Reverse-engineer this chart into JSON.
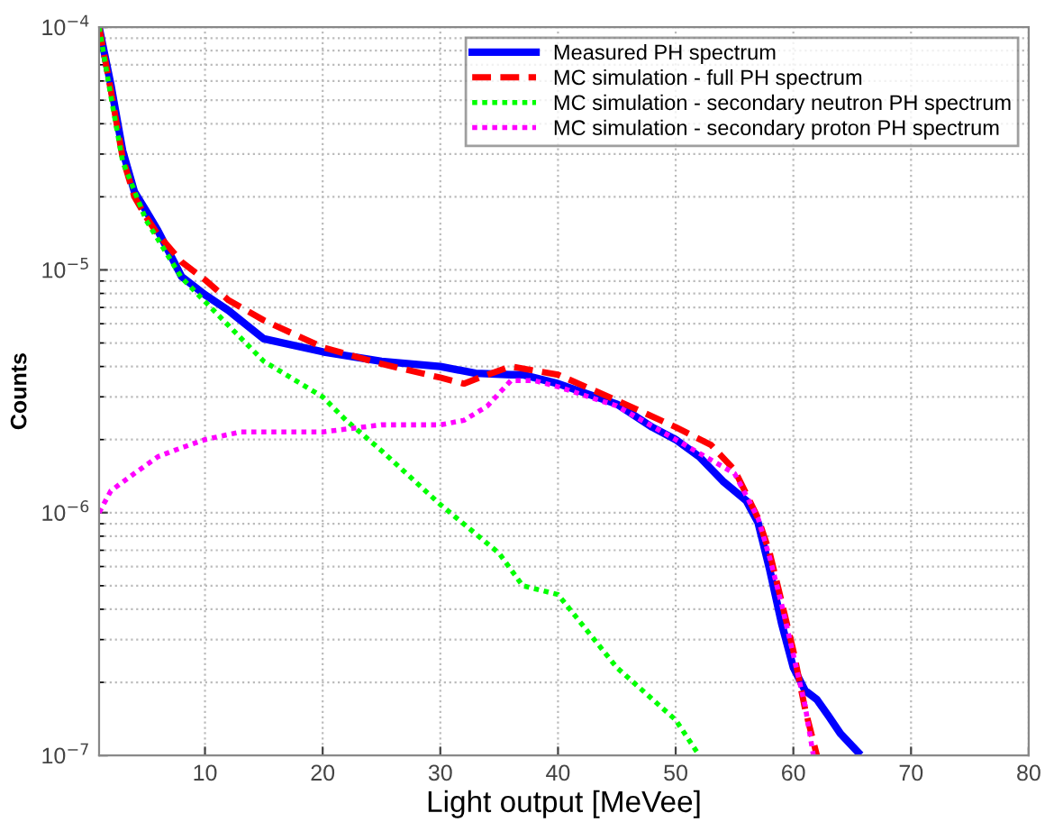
{
  "chart_data": {
    "type": "line",
    "xlabel": "Light output [MeVee]",
    "ylabel": "Counts",
    "log": "y",
    "grid": true,
    "legend": "top right",
    "xlim": [
      1,
      80
    ],
    "xticks": [
      10,
      20,
      30,
      40,
      50,
      60,
      70,
      80
    ],
    "ylim": [
      1e-07,
      0.0001
    ],
    "yticks": [
      {
        "value": 1e-07,
        "label": "10$^{−7}$"
      },
      {
        "value": 1e-06,
        "label": "10$^{−6}$"
      },
      {
        "value": 1e-05,
        "label": "10$^{−5}$"
      },
      {
        "value": 0.0001,
        "label": "10$^{−4}$"
      }
    ],
    "series": [
      {
        "name": "Measured PH spectrum",
        "color": "#0000ff",
        "line_style": "solid",
        "x": [
          1,
          2,
          3,
          4,
          5,
          6,
          7,
          8,
          10,
          12,
          15,
          20,
          25,
          30,
          33,
          36,
          37,
          40,
          45,
          48,
          50,
          52,
          54,
          56,
          57,
          58,
          59,
          60,
          61,
          62,
          63,
          64,
          65.5
        ],
        "values": [
          0.0001,
          5.8e-05,
          3.1e-05,
          2.1e-05,
          1.75e-05,
          1.45e-05,
          1.17e-05,
          9.4e-06,
          7.9e-06,
          6.8e-06,
          5.2e-06,
          4.6e-06,
          4.2e-06,
          4e-06,
          3.75e-06,
          3.7e-06,
          3.7e-06,
          3.4e-06,
          2.8e-06,
          2.25e-06,
          2e-06,
          1.7e-06,
          1.35e-06,
          1.12e-06,
          9.1e-07,
          5.8e-07,
          3.5e-07,
          2.3e-07,
          1.85e-07,
          1.7e-07,
          1.45e-07,
          1.23e-07,
          1.03e-07
        ]
      },
      {
        "name": "MC simulation - full PH spectrum",
        "color": "#ff0000",
        "line_style": "dashed",
        "x": [
          1,
          2,
          3,
          4,
          5,
          6,
          8,
          10,
          12,
          15,
          20,
          25,
          30,
          32,
          34,
          36,
          40,
          45,
          50,
          53,
          55,
          57,
          58,
          59,
          60,
          61,
          62
        ],
        "values": [
          0.0001,
          5.5e-05,
          2.9e-05,
          2e-05,
          1.65e-05,
          1.4e-05,
          1.08e-05,
          9.1e-06,
          7.5e-06,
          6.2e-06,
          4.8e-06,
          4.1e-06,
          3.6e-06,
          3.4e-06,
          3.7e-06,
          4e-06,
          3.7e-06,
          2.9e-06,
          2.25e-06,
          1.9e-06,
          1.5e-06,
          9.5e-07,
          6.8e-07,
          4.3e-07,
          2.7e-07,
          1.55e-07,
          1e-07
        ]
      },
      {
        "name": "MC simulation - secondary neutron PH spectrum",
        "color": "#00ff00",
        "line_style": "dotted",
        "x": [
          1,
          2,
          3,
          5,
          8,
          10,
          15,
          20,
          22,
          25,
          30,
          35,
          37,
          40,
          45,
          50,
          52
        ],
        "values": [
          0.0001,
          5.2e-05,
          2.8e-05,
          1.6e-05,
          9.3e-06,
          7.4e-06,
          4.2e-06,
          3e-06,
          2.4e-06,
          1.8e-06,
          1.08e-06,
          6.8e-07,
          5e-07,
          4.6e-07,
          2.3e-07,
          1.4e-07,
          1e-07
        ]
      },
      {
        "name": "MC simulation - secondary proton PH spectrum",
        "color": "#ff00ff",
        "line_style": "dotted",
        "x": [
          1,
          2,
          4,
          6,
          8,
          10,
          13,
          20,
          25,
          30,
          32,
          34,
          36,
          38,
          40,
          45,
          50,
          55,
          57,
          58,
          59,
          60,
          61,
          61.7
        ],
        "values": [
          1e-06,
          1.23e-06,
          1.45e-06,
          1.7e-06,
          1.85e-06,
          2e-06,
          2.15e-06,
          2.15e-06,
          2.3e-06,
          2.3e-06,
          2.4e-06,
          2.75e-06,
          3.5e-06,
          3.5e-06,
          3.3e-06,
          2.75e-06,
          2e-06,
          1.45e-06,
          9.5e-07,
          6.5e-07,
          4.2e-07,
          2.6e-07,
          1.6e-07,
          1e-07
        ]
      }
    ]
  }
}
